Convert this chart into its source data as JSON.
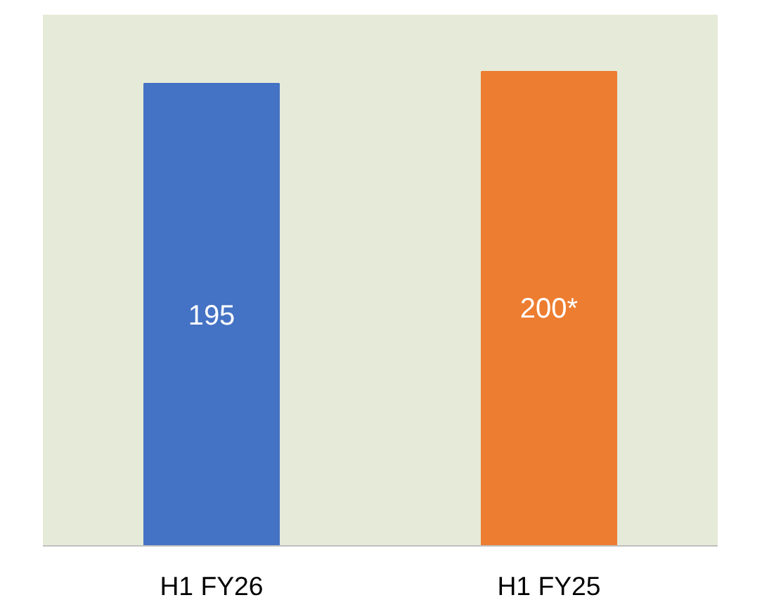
{
  "chart_data": {
    "type": "bar",
    "categories": [
      "H1 FY26",
      "H1 FY25"
    ],
    "values": [
      195,
      200
    ],
    "colors": [
      "#4472c4",
      "#ed7d31"
    ],
    "value_labels": [
      "195",
      "200*"
    ],
    "ylim": [
      0,
      224
    ],
    "grid": false
  }
}
